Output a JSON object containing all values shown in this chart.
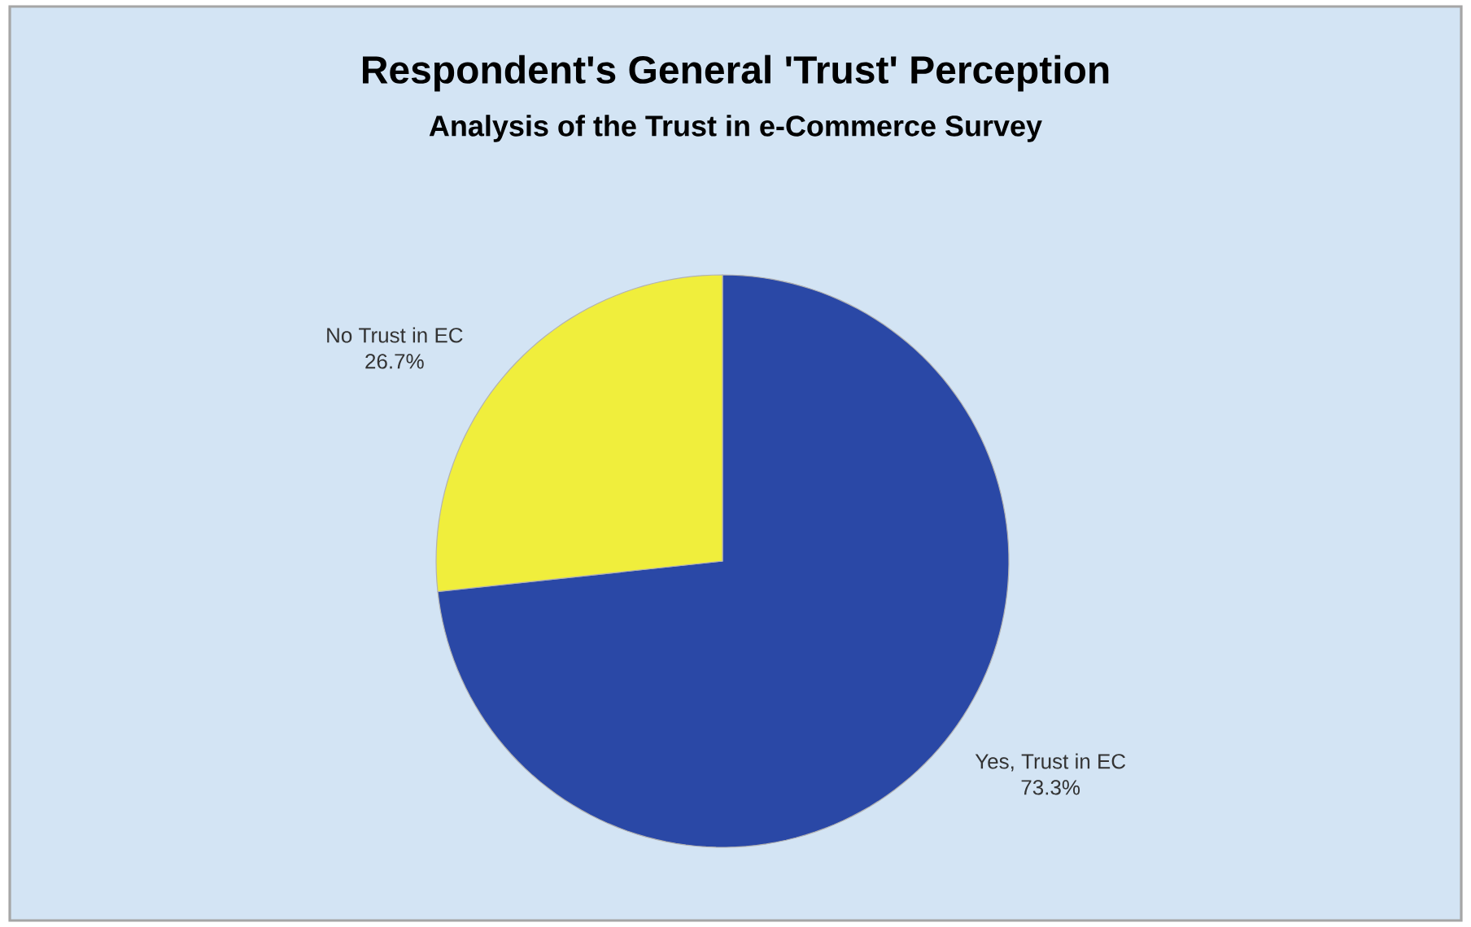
{
  "chart_data": {
    "type": "pie",
    "title": "Respondent's General 'Trust' Perception",
    "subtitle": "Analysis of the Trust in e-Commerce Survey",
    "categories": [
      "Yes, Trust in EC",
      "No Trust in EC"
    ],
    "values": [
      73.3,
      26.7
    ],
    "colors": [
      "#2a48a6",
      "#f0ee3c"
    ],
    "value_labels": [
      "73.3%",
      "26.7%"
    ]
  }
}
